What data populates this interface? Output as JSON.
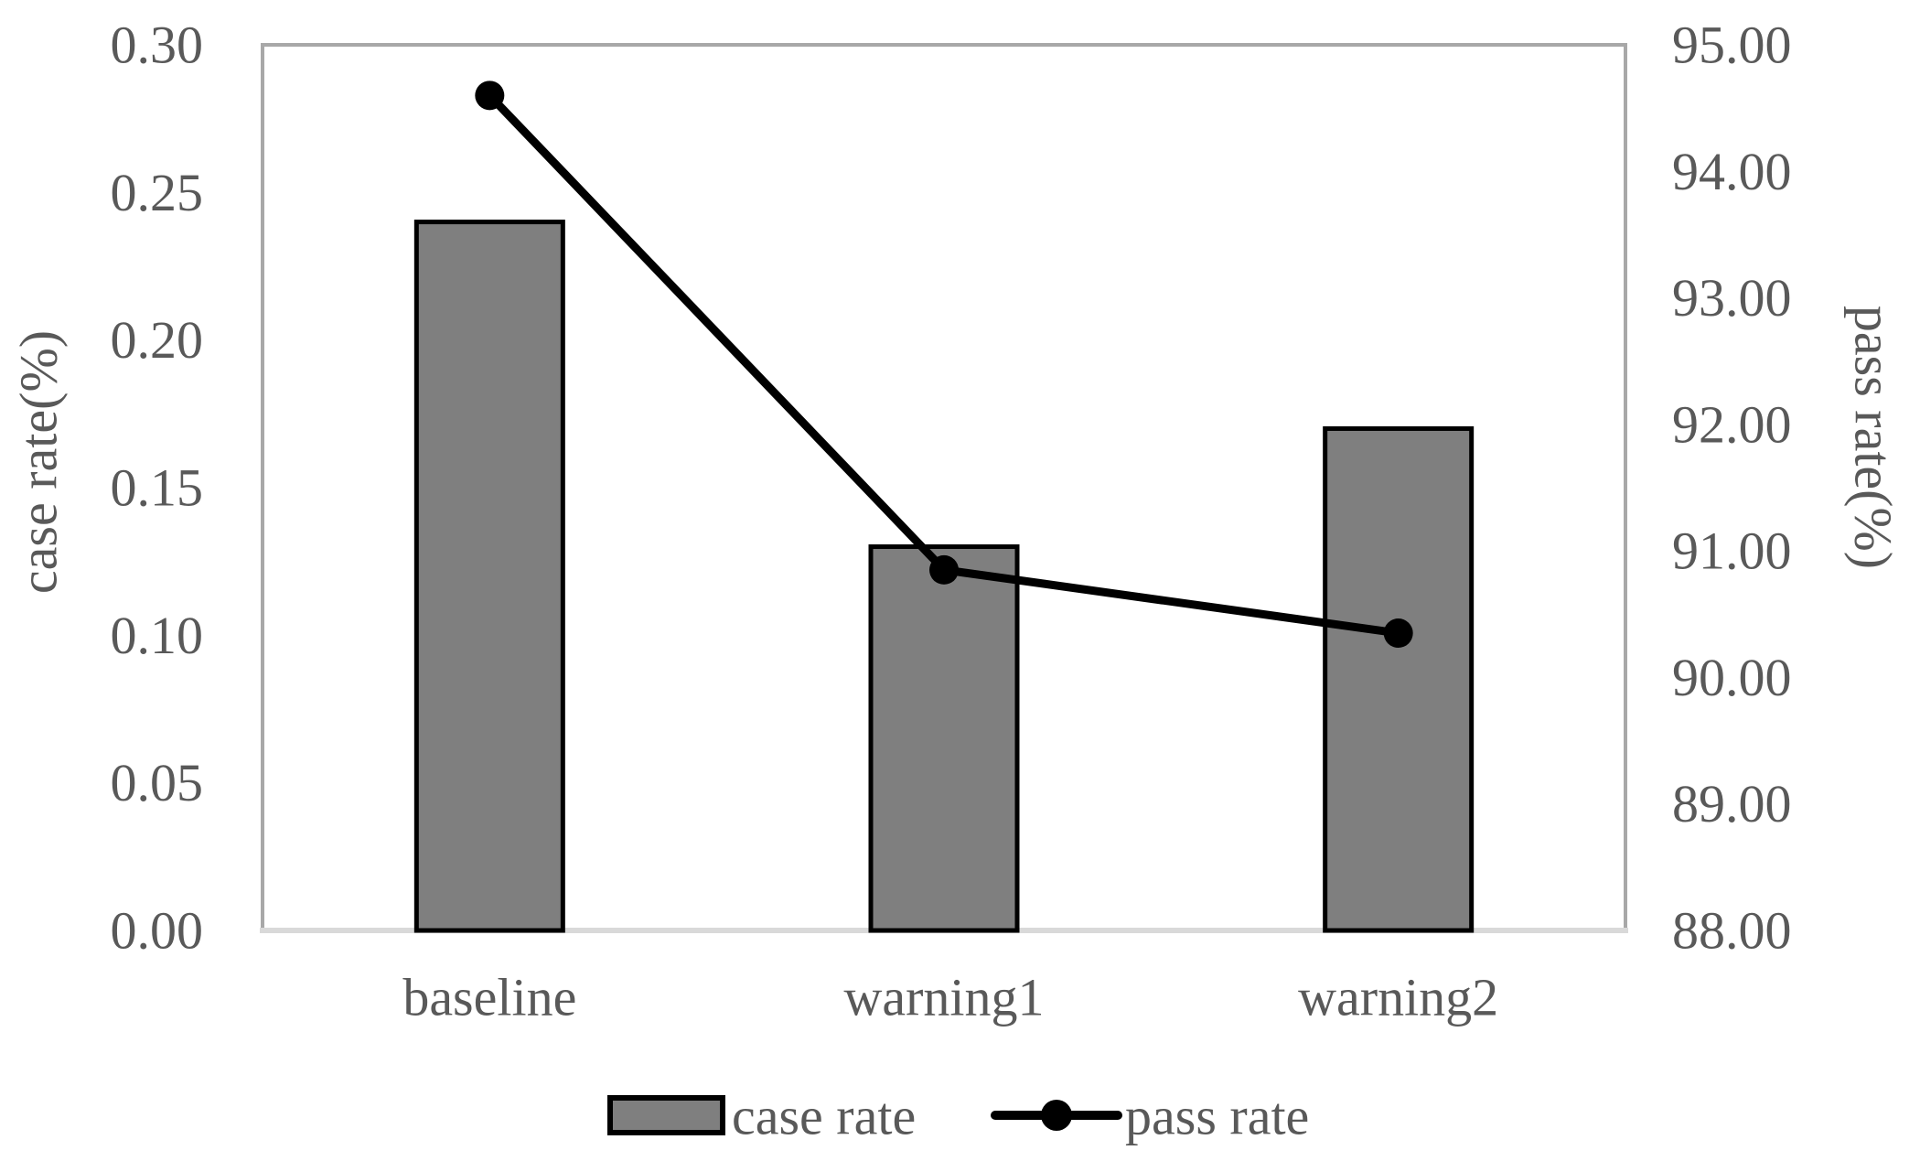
{
  "chart_data": {
    "type": "combo-bar-line",
    "title": "",
    "categories": [
      "baseline",
      "warning1",
      "warning2"
    ],
    "series": [
      {
        "name": "case rate",
        "type": "bar",
        "axis": "left",
        "values": [
          0.24,
          0.13,
          0.17
        ]
      },
      {
        "name": "pass rate",
        "type": "line",
        "axis": "right",
        "values": [
          94.6,
          90.85,
          90.35
        ]
      }
    ],
    "left_axis": {
      "label": "case rate(%)",
      "min": 0.0,
      "max": 0.3,
      "step": 0.05,
      "tick_labels": [
        "0.30",
        "0.25",
        "0.20",
        "0.15",
        "0.10",
        "0.05",
        "0.00"
      ]
    },
    "right_axis": {
      "label": "pass rate(%)",
      "min": 88.0,
      "max": 95.0,
      "step": 1.0,
      "tick_labels": [
        "95.00",
        "94.00",
        "93.00",
        "92.00",
        "91.00",
        "90.00",
        "89.00",
        "88.00"
      ]
    },
    "x_axis": {
      "label": ""
    },
    "legend": {
      "position": "bottom",
      "entries": [
        "case rate",
        "pass rate"
      ]
    },
    "grid": false,
    "colors": {
      "bar_fill": "#7f7f7f",
      "bar_stroke": "#000000",
      "line": "#000000",
      "marker": "#000000",
      "plot_border": "#a8a8a8",
      "axis_line": "#d9d9d9",
      "text": "#595959",
      "background": "#ffffff"
    }
  }
}
